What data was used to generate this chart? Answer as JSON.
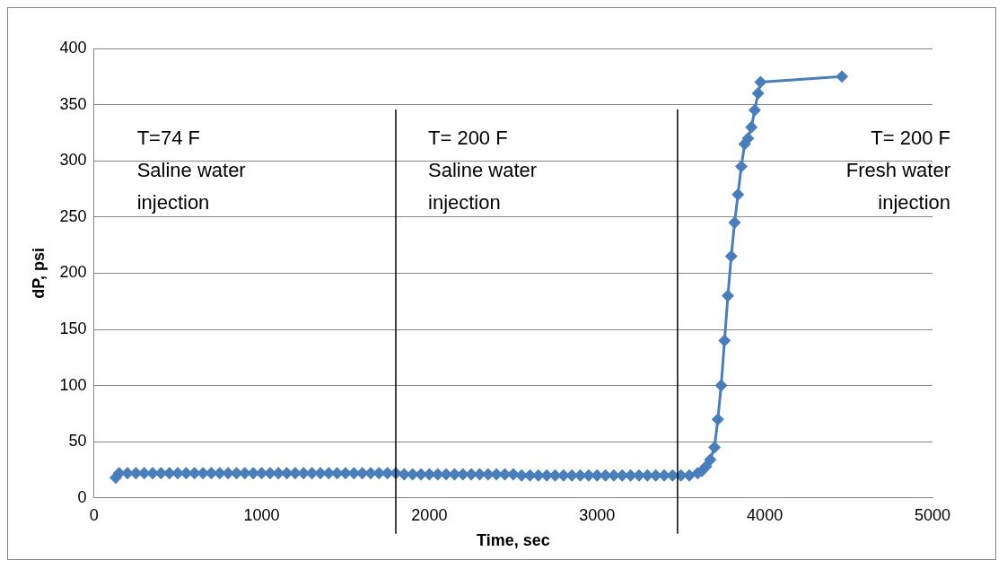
{
  "chart_data": {
    "type": "line",
    "xlabel": "Time, sec",
    "ylabel": "dP, psi",
    "xlim": [
      0,
      5000
    ],
    "xticks": [
      0,
      1000,
      2000,
      3000,
      4000,
      5000
    ],
    "ylim": [
      0,
      400
    ],
    "yticks": [
      0,
      50,
      100,
      150,
      200,
      250,
      300,
      350,
      400
    ],
    "grid": "y",
    "marker": "diamond",
    "line_style": "solid",
    "legend": false,
    "ref_lines": [
      {
        "axis": "x",
        "value": 1800,
        "color": "#000000"
      },
      {
        "axis": "x",
        "value": 3480,
        "color": "#000000"
      }
    ],
    "annotations": [
      "T=74 F\nSaline water\ninjection",
      "T= 200 F\nSaline water\ninjection",
      "T= 200 F\nFresh water\ninjection"
    ],
    "series": [
      {
        "color": "#4a7ebb",
        "x": [
          130,
          150,
          200,
          250,
          300,
          350,
          400,
          450,
          500,
          550,
          600,
          650,
          700,
          750,
          800,
          850,
          900,
          950,
          1000,
          1050,
          1100,
          1150,
          1200,
          1250,
          1300,
          1350,
          1400,
          1450,
          1500,
          1550,
          1600,
          1650,
          1700,
          1750,
          1800,
          1850,
          1900,
          1950,
          2000,
          2050,
          2100,
          2150,
          2200,
          2250,
          2300,
          2350,
          2400,
          2450,
          2500,
          2550,
          2600,
          2650,
          2700,
          2750,
          2800,
          2850,
          2900,
          2950,
          3000,
          3050,
          3100,
          3150,
          3200,
          3250,
          3300,
          3350,
          3400,
          3450,
          3500,
          3550,
          3600,
          3625,
          3650,
          3675,
          3700,
          3720,
          3740,
          3760,
          3780,
          3800,
          3820,
          3840,
          3860,
          3880,
          3900,
          3920,
          3940,
          3960,
          3975,
          4460
        ],
        "values": [
          18,
          22,
          22,
          22,
          22,
          22,
          22,
          22,
          22,
          22,
          22,
          22,
          22,
          22,
          22,
          22,
          22,
          22,
          22,
          22,
          22,
          22,
          22,
          22,
          22,
          22,
          22,
          22,
          22,
          22,
          22,
          22,
          22,
          22,
          22,
          21,
          21,
          21,
          21,
          21,
          21,
          21,
          21,
          21,
          21,
          21,
          21,
          21,
          21,
          20,
          20,
          20,
          20,
          20,
          20,
          20,
          20,
          20,
          20,
          20,
          20,
          20,
          20,
          20,
          20,
          20,
          20,
          20,
          20,
          20,
          22,
          24,
          28,
          34,
          45,
          70,
          100,
          140,
          180,
          215,
          245,
          270,
          295,
          315,
          320,
          330,
          345,
          360,
          370,
          375
        ]
      }
    ]
  }
}
